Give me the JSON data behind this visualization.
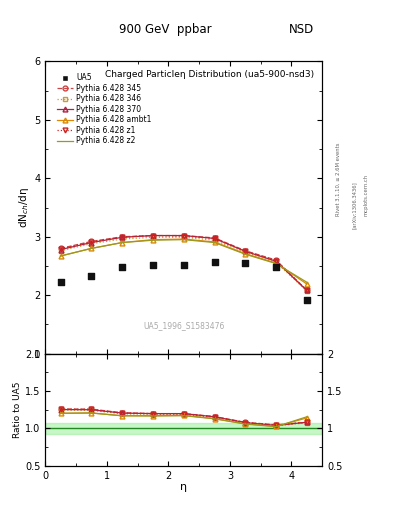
{
  "title_top": "900 GeV  ppbar",
  "title_right": "NSD",
  "plot_title": "Charged Particleη Distribution",
  "plot_subtitle": "(ua5-900-nsd3)",
  "watermark": "UA5_1996_S1583476",
  "ylabel_main": "dN$_{ch}$/dη",
  "ylabel_ratio": "Ratio to UA5",
  "xlabel": "η",
  "rivet_label": "Rivet 3.1.10, ≥ 2.6M events",
  "arxiv_label": "[arXiv:1306.3436]",
  "mcplots_label": "mcplots.cern.ch",
  "ylim_main": [
    1.0,
    6.0
  ],
  "ylim_ratio": [
    0.5,
    2.0
  ],
  "xlim": [
    0.0,
    4.5
  ],
  "ua5_eta": [
    0.25,
    0.75,
    1.25,
    1.75,
    2.25,
    2.75,
    3.25,
    3.75,
    4.25
  ],
  "ua5_values": [
    2.22,
    2.32,
    2.48,
    2.52,
    2.52,
    2.57,
    2.55,
    2.48,
    1.92
  ],
  "pythia_eta": [
    0.25,
    0.75,
    1.25,
    1.75,
    2.25,
    2.75,
    3.25,
    3.75,
    4.25
  ],
  "p345_values": [
    2.8,
    2.92,
    3.0,
    3.02,
    3.02,
    2.98,
    2.76,
    2.6,
    2.08
  ],
  "p346_values": [
    2.76,
    2.88,
    2.96,
    2.99,
    2.99,
    2.94,
    2.73,
    2.56,
    2.07
  ],
  "p370_values": [
    2.78,
    2.9,
    2.99,
    3.02,
    3.02,
    2.97,
    2.75,
    2.58,
    2.08
  ],
  "pambt1_values": [
    2.67,
    2.8,
    2.9,
    2.95,
    2.96,
    2.91,
    2.71,
    2.55,
    2.19
  ],
  "pz1_values": [
    2.79,
    2.91,
    2.99,
    3.02,
    3.01,
    2.97,
    2.75,
    2.59,
    2.08
  ],
  "pz2_values": [
    2.67,
    2.8,
    2.9,
    2.94,
    2.95,
    2.9,
    2.7,
    2.54,
    2.22
  ],
  "color_345": "#cc4444",
  "color_346": "#cc9933",
  "color_370": "#aa2244",
  "color_ambt1": "#dd8800",
  "color_z1": "#cc2222",
  "color_z2": "#999922",
  "ua5_color": "#111111",
  "ratio_band_color": "#90ee90",
  "ratio_line_color": "#228822",
  "bg_color": "#ffffff"
}
